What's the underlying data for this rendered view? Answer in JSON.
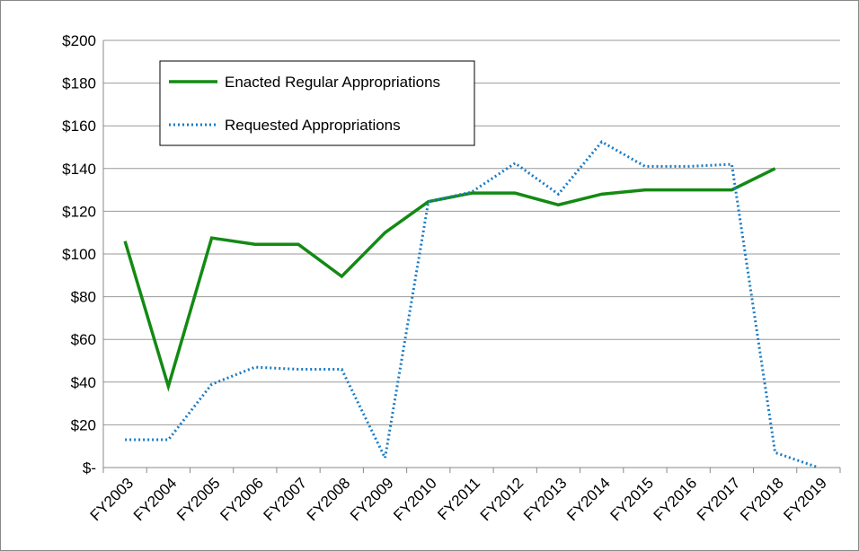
{
  "chart_data": {
    "type": "line",
    "categories": [
      "FY2003",
      "FY2004",
      "FY2005",
      "FY2006",
      "FY2007",
      "FY2008",
      "FY2009",
      "FY2010",
      "FY2011",
      "FY2012",
      "FY2013",
      "FY2014",
      "FY2015",
      "FY2016",
      "FY2017",
      "FY2018",
      "FY2019"
    ],
    "series": [
      {
        "name": "Enacted Regular Appropriations",
        "color": "#138a13",
        "style": "solid",
        "values": [
          106,
          38,
          107.5,
          104.5,
          104.5,
          89.5,
          110,
          124.5,
          128.5,
          128.5,
          123,
          128,
          130,
          130,
          130,
          140,
          null
        ]
      },
      {
        "name": "Requested Appropriations",
        "color": "#1a7cc4",
        "style": "dotted",
        "values": [
          13,
          13,
          39,
          47,
          46,
          46,
          4.5,
          124.5,
          129,
          142.5,
          128,
          152.5,
          141,
          141,
          142,
          7,
          0
        ]
      }
    ],
    "ylim": [
      0,
      200
    ],
    "yticks": [
      {
        "value": 0,
        "label": "$-"
      },
      {
        "value": 20,
        "label": "$20"
      },
      {
        "value": 40,
        "label": "$40"
      },
      {
        "value": 60,
        "label": "$60"
      },
      {
        "value": 80,
        "label": "$80"
      },
      {
        "value": 100,
        "label": "$100"
      },
      {
        "value": 120,
        "label": "$120"
      },
      {
        "value": 140,
        "label": "$140"
      },
      {
        "value": 160,
        "label": "$160"
      },
      {
        "value": 180,
        "label": "$180"
      },
      {
        "value": 200,
        "label": "$200"
      }
    ],
    "grid": true,
    "legend": "upper left"
  }
}
